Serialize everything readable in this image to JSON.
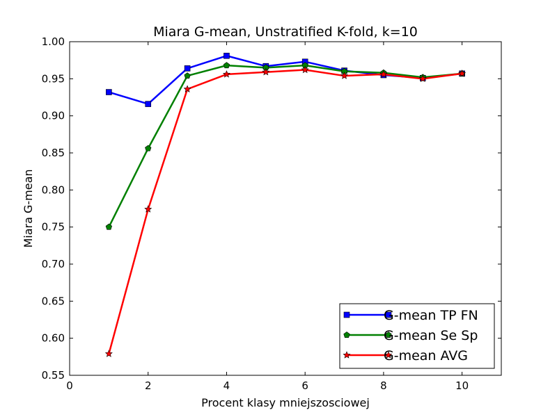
{
  "chart_data": {
    "type": "line",
    "title": "Miara G-mean, Unstratified K-fold, k=10",
    "xlabel": "Procent klasy mniejszosciowej",
    "ylabel": "Miara G-mean",
    "xlim": [
      0,
      11
    ],
    "ylim": [
      0.55,
      1.0
    ],
    "xticks": [
      0,
      2,
      4,
      6,
      8,
      10
    ],
    "xtick_labels": [
      "0",
      "2",
      "4",
      "6",
      "8",
      "10"
    ],
    "yticks": [
      0.55,
      0.6,
      0.65,
      0.7,
      0.75,
      0.8,
      0.85,
      0.9,
      0.95,
      1.0
    ],
    "ytick_labels": [
      "0.55",
      "0.60",
      "0.65",
      "0.70",
      "0.75",
      "0.80",
      "0.85",
      "0.90",
      "0.95",
      "1.00"
    ],
    "grid": false,
    "legend_position": "lower-right",
    "x": [
      1,
      2,
      3,
      4,
      5,
      6,
      7,
      8,
      9,
      10
    ],
    "series": [
      {
        "name": "G-mean TP FN",
        "color": "#0000ff",
        "marker": "square",
        "values": [
          0.932,
          0.916,
          0.964,
          0.981,
          0.967,
          0.973,
          0.961,
          0.955,
          0.951,
          0.957
        ]
      },
      {
        "name": "G-mean Se Sp",
        "color": "#008000",
        "marker": "pentagon",
        "values": [
          0.75,
          0.856,
          0.954,
          0.968,
          0.965,
          0.968,
          0.96,
          0.958,
          0.952,
          0.957
        ]
      },
      {
        "name": "G-mean AVG",
        "color": "#ff0000",
        "marker": "star",
        "values": [
          0.579,
          0.774,
          0.936,
          0.956,
          0.959,
          0.962,
          0.954,
          0.956,
          0.95,
          0.957
        ]
      }
    ]
  }
}
